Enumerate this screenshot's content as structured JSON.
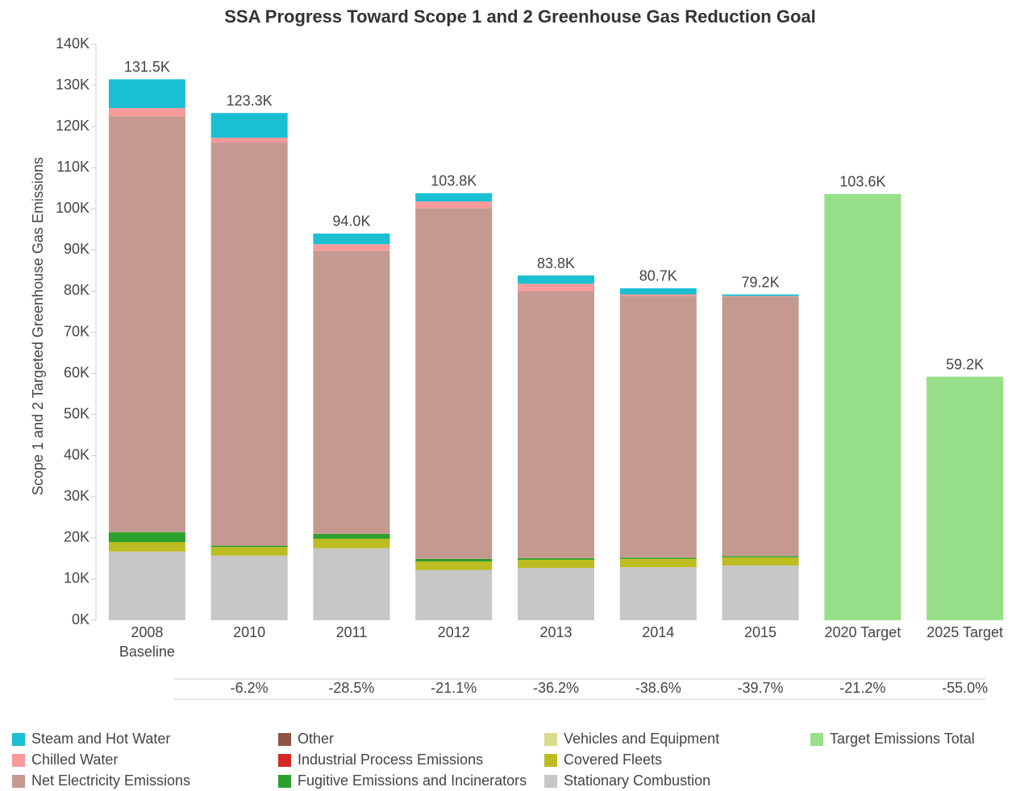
{
  "chart_data": {
    "type": "stacked_bar",
    "title": "SSA Progress Toward Scope 1 and 2 Greenhouse Gas Reduction Goal",
    "y_label": "Scope 1 and 2 Targeted Greenhouse Gas Emissions",
    "categories": [
      "2008\nBaseline",
      "2010",
      "2011",
      "2012",
      "2013",
      "2014",
      "2015",
      "2020 Target",
      "2025 Target"
    ],
    "series": [
      {
        "name": "Steam and Hot Water",
        "color": "#1bbfd2",
        "values": [
          7.0,
          6.0,
          2.6,
          2.0,
          2.0,
          1.5,
          0.4,
          null,
          null
        ]
      },
      {
        "name": "Chilled Water",
        "color": "#f89a9a",
        "values": [
          2.0,
          1.2,
          1.6,
          1.6,
          1.8,
          0.4,
          0.2,
          null,
          null
        ]
      },
      {
        "name": "Net Electricity Emissions",
        "color": "#c49a90",
        "values": [
          101.1,
          98.0,
          68.8,
          85.3,
          64.9,
          63.6,
          63.0,
          null,
          null
        ]
      },
      {
        "name": "Other",
        "color": "#8c5647",
        "values": [
          0,
          0,
          0,
          0,
          0,
          0,
          0,
          null,
          null
        ]
      },
      {
        "name": "Industrial Process Emissions",
        "color": "#d62728",
        "values": [
          0,
          0,
          0,
          0,
          0,
          0,
          0,
          null,
          null
        ]
      },
      {
        "name": "Fugitive Emissions and Incinerators",
        "color": "#2ca02c",
        "values": [
          2.4,
          0.3,
          1.2,
          0.6,
          0.4,
          0.3,
          0.3,
          null,
          null
        ]
      },
      {
        "name": "Vehicles and Equipment",
        "color": "#dbdb8d",
        "values": [
          0,
          0,
          0,
          0,
          0,
          0,
          0,
          null,
          null
        ]
      },
      {
        "name": "Covered Fleets",
        "color": "#bcbd22",
        "values": [
          2.3,
          2.1,
          2.3,
          2.1,
          2.0,
          2.0,
          2.0,
          null,
          null
        ]
      },
      {
        "name": "Stationary Combustion",
        "color": "#c7c7c7",
        "values": [
          16.7,
          15.7,
          17.5,
          12.2,
          12.7,
          12.9,
          13.3,
          null,
          null
        ]
      },
      {
        "name": "Target Emissions Total",
        "color": "#98df8a",
        "values": [
          null,
          null,
          null,
          null,
          null,
          null,
          null,
          103.6,
          59.2
        ]
      }
    ],
    "totals": {
      "values": [
        131.5,
        123.3,
        94.0,
        103.8,
        83.8,
        80.7,
        79.2,
        103.6,
        59.2
      ],
      "value_labels": [
        "131.5K",
        "123.3K",
        "94.0K",
        "103.8K",
        "83.8K",
        "80.7K",
        "79.2K",
        "103.6K",
        "59.2K"
      ]
    },
    "change": {
      "values": [
        null,
        -6.2,
        -28.5,
        -21.1,
        -36.2,
        -38.6,
        -39.7,
        -21.2,
        -55.0
      ],
      "value_labels": [
        null,
        "-6.2%",
        "-28.5%",
        "-21.1%",
        "-36.2%",
        "-38.6%",
        "-39.7%",
        "-21.2%",
        "-55.0%"
      ]
    },
    "ylim": [
      0,
      140
    ],
    "yticks": [
      {
        "value": 0,
        "label": "0K"
      },
      {
        "value": 10,
        "label": "10K"
      },
      {
        "value": 20,
        "label": "20K"
      },
      {
        "value": 30,
        "label": "30K"
      },
      {
        "value": 40,
        "label": "40K"
      },
      {
        "value": 50,
        "label": "50K"
      },
      {
        "value": 60,
        "label": "60K"
      },
      {
        "value": 70,
        "label": "70K"
      },
      {
        "value": 80,
        "label": "80K"
      },
      {
        "value": 90,
        "label": "90K"
      },
      {
        "value": 100,
        "label": "100K"
      },
      {
        "value": 110,
        "label": "110K"
      },
      {
        "value": 120,
        "label": "120K"
      },
      {
        "value": 130,
        "label": "130K"
      },
      {
        "value": 140,
        "label": "140K"
      }
    ],
    "legend": "bottom"
  }
}
